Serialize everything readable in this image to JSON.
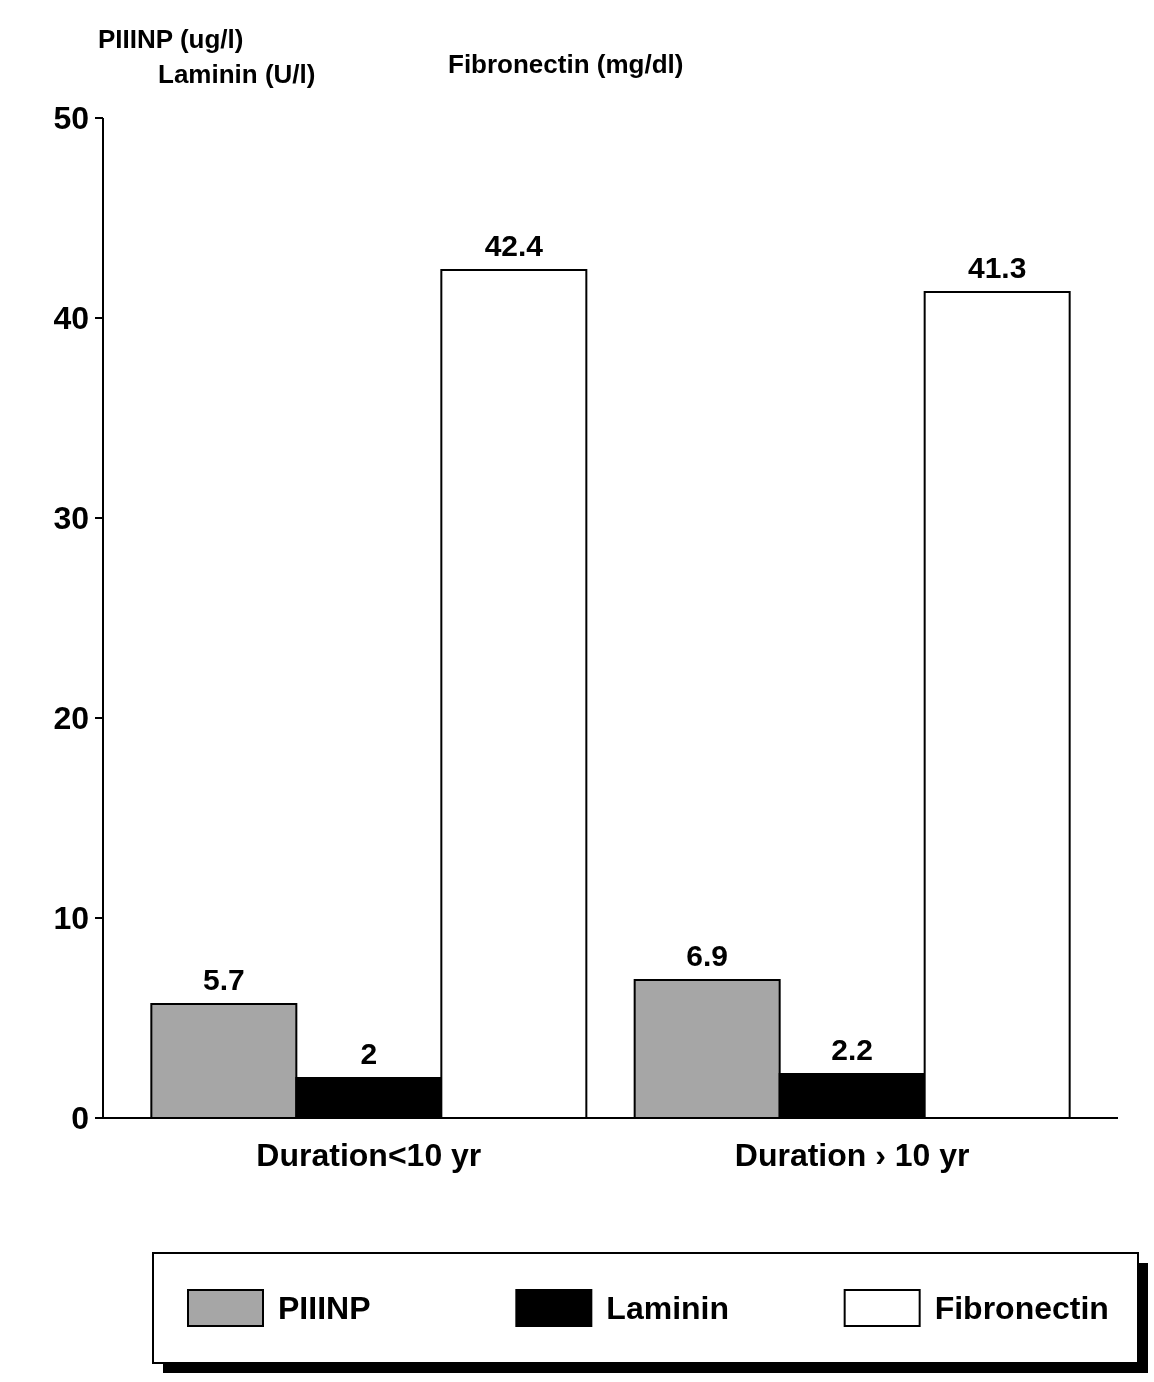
{
  "chart_data": {
    "type": "bar",
    "categories": [
      "Duration<10 yr",
      "Duration › 10 yr"
    ],
    "series": [
      {
        "name": "PIIINP",
        "color": "#a6a6a6",
        "values": [
          5.7,
          6.9
        ]
      },
      {
        "name": "Laminin",
        "color": "#000000",
        "values": [
          2,
          2.2
        ]
      },
      {
        "name": "Fibronectin",
        "color": "#ffffff",
        "values": [
          42.4,
          41.3
        ]
      }
    ],
    "ylim": [
      0,
      50
    ],
    "yticks": [
      0,
      10,
      20,
      30,
      40,
      50
    ],
    "data_labels": true,
    "grid": false,
    "legend": "bottom",
    "annotations": [
      "PIIINP (ug/l)",
      "Laminin (U/l)",
      "Fibronectin (mg/dl)"
    ]
  }
}
